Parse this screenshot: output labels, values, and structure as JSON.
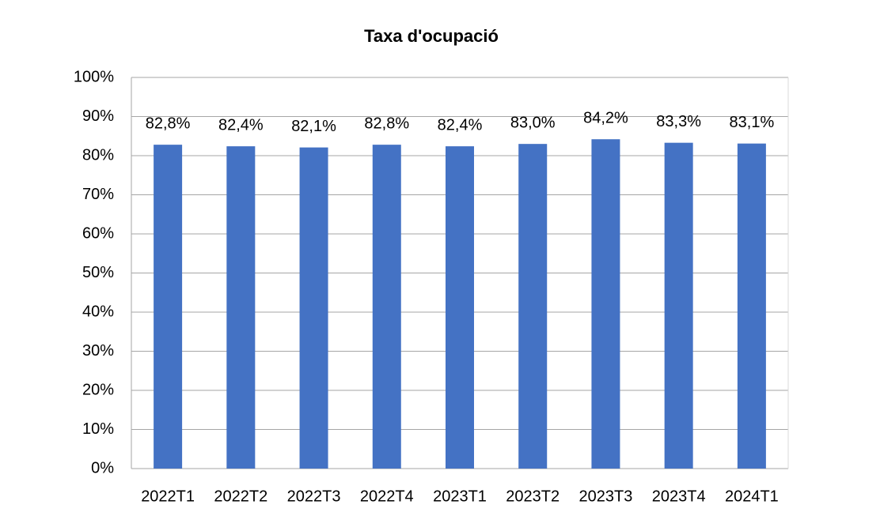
{
  "chart_data": {
    "type": "bar",
    "title": "Taxa d'ocupació",
    "categories": [
      "2022T1",
      "2022T2",
      "2022T3",
      "2022T4",
      "2023T1",
      "2023T2",
      "2023T3",
      "2023T4",
      "2024T1"
    ],
    "values": [
      82.8,
      82.4,
      82.1,
      82.8,
      82.4,
      83.0,
      84.2,
      83.3,
      83.1
    ],
    "value_labels": [
      "82,8%",
      "82,4%",
      "82,1%",
      "82,8%",
      "82,4%",
      "83,0%",
      "84,2%",
      "83,3%",
      "83,1%"
    ],
    "color": "#4472c4",
    "ylim": [
      0,
      100
    ],
    "yticks": [
      {
        "value": 0,
        "label": "0%"
      },
      {
        "value": 10,
        "label": "10%"
      },
      {
        "value": 20,
        "label": "20%"
      },
      {
        "value": 30,
        "label": "30%"
      },
      {
        "value": 40,
        "label": "40%"
      },
      {
        "value": 50,
        "label": "50%"
      },
      {
        "value": 60,
        "label": "60%"
      },
      {
        "value": 70,
        "label": "70%"
      },
      {
        "value": 80,
        "label": "80%"
      },
      {
        "value": 90,
        "label": "90%"
      },
      {
        "value": 100,
        "label": "100%"
      }
    ],
    "grid": true
  }
}
